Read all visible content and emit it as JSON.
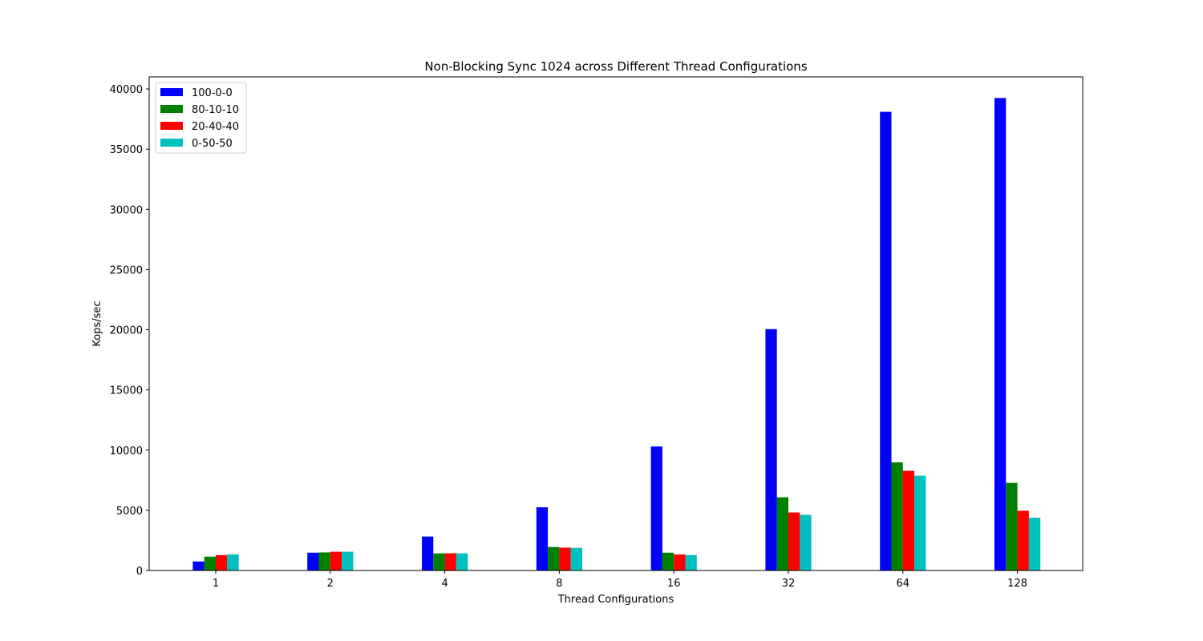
{
  "chart_data": {
    "type": "bar",
    "title": "Non-Blocking Sync 1024 across Different Thread Configurations",
    "xlabel": "Thread Configurations",
    "ylabel": "Kops/sec",
    "categories": [
      "1",
      "2",
      "4",
      "8",
      "16",
      "32",
      "64",
      "128"
    ],
    "ylim": [
      0,
      41000
    ],
    "yticks": [
      0,
      5000,
      10000,
      15000,
      20000,
      25000,
      30000,
      35000,
      40000
    ],
    "grid": false,
    "legend_position": "top-left",
    "series": [
      {
        "name": "100-0-0",
        "color": "#0000ff",
        "values": [
          750,
          1480,
          2820,
          5250,
          10300,
          20050,
          38100,
          39250
        ]
      },
      {
        "name": "80-10-10",
        "color": "#008000",
        "values": [
          1150,
          1500,
          1420,
          1950,
          1480,
          6080,
          8980,
          7280
        ]
      },
      {
        "name": "20-40-40",
        "color": "#ff0000",
        "values": [
          1280,
          1560,
          1430,
          1900,
          1330,
          4820,
          8280,
          4960
        ]
      },
      {
        "name": "0-50-50",
        "color": "#00bfbf",
        "values": [
          1340,
          1560,
          1420,
          1880,
          1280,
          4620,
          7880,
          4380
        ]
      }
    ]
  }
}
